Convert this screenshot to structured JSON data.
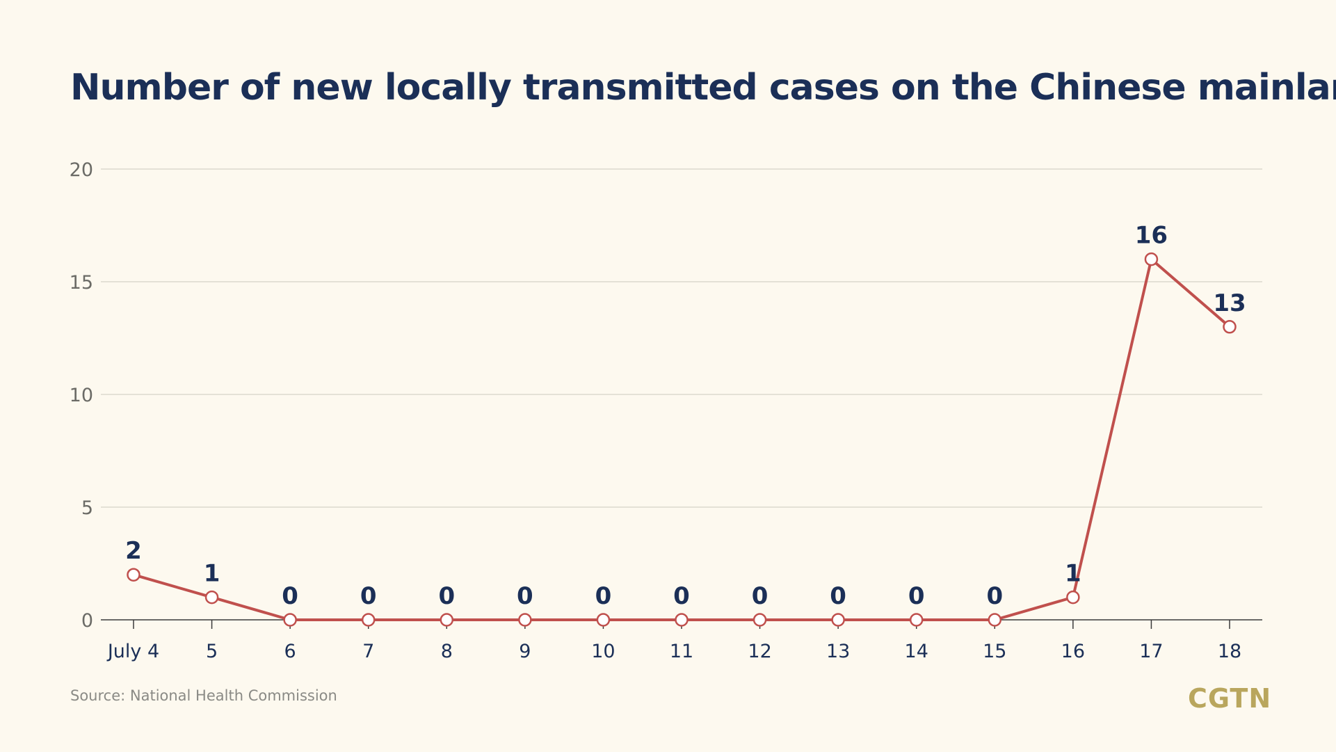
{
  "title": "Number of new locally transmitted cases on the Chinese mainland",
  "source": "Source: National Health Commission",
  "logo": "CGTN",
  "colors": {
    "background": "#fdf9ef",
    "line": "#c0504d",
    "label": "#1b2f57",
    "tick": "#6b6b66",
    "grid": "#d6d3c8",
    "logo": "#b9a65d"
  },
  "chart_data": {
    "type": "line",
    "title": "Number of new locally transmitted cases on the Chinese mainland",
    "xlabel": "",
    "ylabel": "",
    "categories": [
      "July 4",
      "5",
      "6",
      "7",
      "8",
      "9",
      "10",
      "11",
      "12",
      "13",
      "14",
      "15",
      "16",
      "17",
      "18"
    ],
    "series": [
      {
        "values": [
          2,
          1,
          0,
          0,
          0,
          0,
          0,
          0,
          0,
          0,
          0,
          0,
          1,
          16,
          13
        ]
      }
    ],
    "ylim": [
      0,
      20
    ],
    "yticks": [
      0,
      5,
      10,
      15,
      20
    ],
    "grid": true,
    "data_labels": true,
    "legend": "none"
  }
}
